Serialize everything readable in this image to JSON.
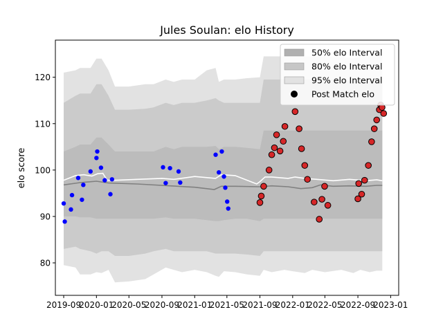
{
  "chart_data": {
    "type": "line",
    "title": "Jules Soulan: elo History",
    "xlabel": "",
    "ylabel": "elo score",
    "xlim": [
      "2019-08-01",
      "2023-01-31"
    ],
    "ylim": [
      73,
      128
    ],
    "x_ticks": [
      {
        "date": "2019-09-01",
        "label": "2019-09"
      },
      {
        "date": "2020-01-01",
        "label": "2020-01"
      },
      {
        "date": "2020-05-01",
        "label": "2020-05"
      },
      {
        "date": "2020-09-01",
        "label": "2020-09"
      },
      {
        "date": "2021-01-01",
        "label": "2021-01"
      },
      {
        "date": "2021-05-01",
        "label": "2021-05"
      },
      {
        "date": "2021-09-01",
        "label": "2021-09"
      },
      {
        "date": "2022-01-01",
        "label": "2022-01"
      },
      {
        "date": "2022-05-01",
        "label": "2022-05"
      },
      {
        "date": "2022-09-01",
        "label": "2022-09"
      },
      {
        "date": "2023-01-01",
        "label": "2023-01"
      }
    ],
    "y_ticks": [
      80,
      90,
      100,
      110,
      120
    ],
    "grid": false,
    "legend_position": "top-right",
    "legend": [
      {
        "label": "50% elo Interval",
        "swatch": "#b0b0b0",
        "kind": "patch"
      },
      {
        "label": "80% elo Interval",
        "swatch": "#c6c6c6",
        "kind": "patch"
      },
      {
        "label": "95% elo Interval",
        "swatch": "#e2e2e2",
        "kind": "patch"
      },
      {
        "label": "Post Match elo",
        "swatch": "#000000",
        "kind": "marker"
      }
    ],
    "colors": {
      "band95": "#e2e2e2",
      "band80": "#cbcbcb",
      "band50": "#bcbcbc",
      "median_line": "#808080",
      "mean_line": "#ffffff",
      "points_blue": "#0000ff",
      "points_red": "#d62728",
      "points_red_edge": "#000000"
    },
    "bands": {
      "x": [
        "2019-09-01",
        "2019-10-15",
        "2019-11-01",
        "2019-12-10",
        "2020-01-01",
        "2020-01-20",
        "2020-02-15",
        "2020-03-10",
        "2020-05-01",
        "2020-07-01",
        "2020-08-01",
        "2020-09-15",
        "2020-10-15",
        "2020-11-15",
        "2021-01-01",
        "2021-02-15",
        "2021-03-20",
        "2021-04-01",
        "2021-04-20",
        "2021-06-01",
        "2021-07-15",
        "2021-09-01",
        "2021-09-15",
        "2021-10-15",
        "2021-12-01",
        "2022-01-01",
        "2022-02-15",
        "2022-03-15",
        "2022-05-01",
        "2022-07-01",
        "2022-08-15",
        "2022-09-10",
        "2022-10-15",
        "2022-11-10",
        "2022-12-01"
      ],
      "lo95": [
        79.5,
        79.0,
        77.5,
        77.5,
        78.0,
        77.8,
        78.5,
        75.8,
        76.0,
        76.5,
        77.5,
        79.0,
        78.5,
        78.0,
        78.5,
        78.0,
        77.2,
        77.0,
        78.2,
        78.0,
        77.5,
        77.2,
        78.5,
        78.0,
        78.5,
        78.2,
        77.8,
        78.5,
        78.0,
        78.5,
        77.8,
        78.5,
        78.0,
        78.3,
        78.3
      ],
      "hi95": [
        121.0,
        121.5,
        122.0,
        122.0,
        124.0,
        124.0,
        121.5,
        118.0,
        118.0,
        118.5,
        118.5,
        119.5,
        119.0,
        119.5,
        119.5,
        121.5,
        122.0,
        119.0,
        119.5,
        119.5,
        119.8,
        120.0,
        124.5,
        124.5,
        124.5,
        124.5,
        124.5,
        124.5,
        124.5,
        124.5,
        124.0,
        124.5,
        124.5,
        124.5,
        124.5
      ],
      "lo80": [
        83.0,
        83.5,
        83.0,
        82.5,
        82.0,
        82.5,
        82.5,
        81.5,
        81.5,
        82.0,
        82.5,
        83.0,
        82.5,
        82.5,
        82.5,
        82.5,
        82.0,
        82.0,
        82.0,
        82.0,
        81.8,
        81.5,
        82.5,
        82.5,
        82.5,
        82.5,
        82.5,
        82.5,
        82.5,
        82.5,
        82.5,
        82.5,
        82.5,
        82.5,
        82.5
      ],
      "hi80": [
        114.5,
        116.0,
        116.5,
        116.5,
        118.5,
        118.5,
        116.0,
        113.0,
        113.0,
        113.2,
        113.5,
        114.5,
        114.0,
        114.5,
        114.5,
        115.0,
        115.5,
        115.0,
        114.5,
        114.5,
        114.5,
        114.5,
        119.5,
        119.5,
        119.5,
        119.5,
        119.5,
        119.5,
        119.5,
        119.5,
        119.0,
        119.5,
        119.5,
        119.5,
        119.5
      ],
      "lo50": [
        90.0,
        90.0,
        89.8,
        89.8,
        89.5,
        89.5,
        89.5,
        89.5,
        89.5,
        89.5,
        89.5,
        89.8,
        89.5,
        89.5,
        89.5,
        89.2,
        89.0,
        89.0,
        89.2,
        89.5,
        89.5,
        89.0,
        89.5,
        89.5,
        89.5,
        89.5,
        89.5,
        89.5,
        89.5,
        89.5,
        89.5,
        89.5,
        89.5,
        89.5,
        89.5
      ],
      "hi50": [
        104.0,
        105.0,
        105.5,
        105.5,
        107.0,
        107.0,
        105.5,
        104.0,
        104.0,
        104.0,
        104.0,
        105.0,
        104.5,
        105.0,
        105.0,
        105.0,
        105.2,
        104.5,
        105.0,
        105.0,
        104.8,
        104.5,
        108.5,
        108.5,
        108.5,
        108.5,
        108.5,
        108.5,
        108.5,
        108.5,
        108.5,
        108.5,
        108.5,
        108.5,
        108.5
      ]
    },
    "series": [
      {
        "kind": "median_line",
        "x": [
          "2019-09-01",
          "2019-11-01",
          "2020-01-01",
          "2020-02-15",
          "2020-06-01",
          "2020-10-01",
          "2021-01-01",
          "2021-03-15",
          "2021-04-10",
          "2021-06-01",
          "2021-09-01",
          "2021-10-15",
          "2021-12-15",
          "2022-02-01",
          "2022-03-15",
          "2022-04-15",
          "2022-06-01",
          "2022-08-01",
          "2022-10-01",
          "2022-11-10",
          "2022-12-01"
        ],
        "y": [
          96.8,
          97.3,
          97.6,
          97.2,
          97.0,
          96.6,
          96.3,
          95.8,
          96.5,
          96.5,
          96.4,
          96.6,
          96.4,
          96.0,
          96.2,
          96.8,
          96.5,
          96.6,
          96.5,
          96.7,
          96.7
        ]
      },
      {
        "kind": "mean_line",
        "x": [
          "2019-09-01",
          "2019-10-15",
          "2019-11-15",
          "2019-12-15",
          "2020-01-05",
          "2020-01-25",
          "2020-02-10",
          "2020-03-15",
          "2020-06-01",
          "2020-09-01",
          "2020-10-15",
          "2021-01-01",
          "2021-03-20",
          "2021-04-10",
          "2021-06-01",
          "2021-08-20",
          "2021-09-01",
          "2021-09-20",
          "2021-10-15",
          "2021-12-15",
          "2022-01-10",
          "2022-02-15",
          "2022-04-01",
          "2022-06-01",
          "2022-08-01",
          "2022-10-01",
          "2022-11-10",
          "2022-12-01"
        ],
        "y": [
          97.8,
          98.8,
          99.0,
          98.7,
          99.2,
          99.3,
          97.8,
          97.8,
          98.0,
          98.2,
          98.0,
          98.6,
          98.2,
          99.0,
          98.8,
          97.0,
          97.5,
          98.5,
          98.5,
          98.2,
          98.5,
          98.2,
          98.0,
          97.7,
          98.0,
          97.7,
          97.9,
          97.7
        ]
      },
      {
        "kind": "points",
        "color": "blue",
        "x": [
          "2019-09-01",
          "2019-09-05",
          "2019-09-28",
          "2019-10-02",
          "2019-10-25",
          "2019-11-08",
          "2019-11-13",
          "2019-12-10",
          "2020-01-01",
          "2020-01-04",
          "2020-01-18",
          "2020-02-01",
          "2020-02-22",
          "2020-02-28",
          "2020-09-05",
          "2020-09-15",
          "2020-10-01",
          "2020-11-02",
          "2020-11-08",
          "2021-03-20",
          "2021-04-01",
          "2021-04-12",
          "2021-04-20",
          "2021-04-25",
          "2021-05-02",
          "2021-05-06"
        ],
        "y": [
          92.8,
          88.9,
          91.5,
          94.6,
          98.3,
          93.6,
          96.8,
          99.7,
          102.6,
          104.0,
          100.5,
          97.8,
          94.8,
          98.0,
          100.6,
          97.2,
          100.4,
          99.7,
          97.3,
          103.3,
          99.5,
          104.0,
          98.6,
          96.2,
          93.2,
          91.7
        ]
      },
      {
        "kind": "points",
        "color": "red",
        "name": "Post Match elo",
        "x": [
          "2021-09-01",
          "2021-09-06",
          "2021-09-15",
          "2021-10-05",
          "2021-10-15",
          "2021-10-25",
          "2021-11-02",
          "2021-11-15",
          "2021-11-27",
          "2021-12-03",
          "2022-01-10",
          "2022-01-25",
          "2022-02-03",
          "2022-02-15",
          "2022-02-25",
          "2022-03-22",
          "2022-04-10",
          "2022-04-20",
          "2022-04-30",
          "2022-05-12",
          "2022-09-01",
          "2022-09-04",
          "2022-09-15",
          "2022-09-26",
          "2022-10-10",
          "2022-10-22",
          "2022-11-01",
          "2022-11-10",
          "2022-11-20",
          "2022-11-25",
          "2022-11-30",
          "2022-12-06"
        ],
        "y": [
          93.0,
          94.4,
          96.5,
          100.0,
          103.3,
          104.8,
          107.6,
          104.1,
          106.2,
          109.4,
          112.6,
          108.9,
          104.6,
          101.0,
          98.0,
          93.1,
          89.4,
          93.7,
          96.5,
          92.4,
          93.8,
          97.1,
          94.8,
          97.8,
          101.0,
          106.1,
          108.9,
          110.8,
          113.0,
          114.0,
          113.5,
          112.2
        ]
      }
    ]
  }
}
